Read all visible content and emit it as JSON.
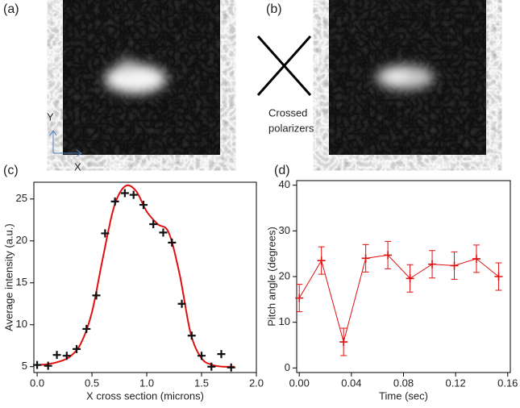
{
  "panel_labels": [
    "(a)",
    "(b)",
    "(c)",
    "(d)"
  ],
  "polarizer_label": [
    "Crossed",
    "polarizers"
  ],
  "axis_arrows": {
    "y": "Y",
    "x": "X"
  },
  "chart_data": [
    {
      "type": "scatter",
      "xlabel": "X cross section (microns)",
      "ylabel": "Average intensity (a.u.)",
      "xlim": [
        -0.03,
        2.0
      ],
      "ylim": [
        4.3,
        27
      ],
      "xticks": [
        {
          "value": 0,
          "label": "0.0"
        },
        {
          "value": 0.5,
          "label": "0.5"
        },
        {
          "value": 1,
          "label": "1.0"
        },
        {
          "value": 1.5,
          "label": "1.5"
        },
        {
          "value": 2,
          "label": "2.0"
        }
      ],
      "yticks": [
        5,
        10,
        15,
        20,
        25
      ],
      "series": [
        {
          "mode": "line",
          "color": "#e01010",
          "x": [
            0,
            0.1,
            0.2,
            0.3,
            0.4,
            0.5,
            0.6,
            0.7,
            0.8,
            0.9,
            1.0,
            1.1,
            1.2,
            1.3,
            1.4,
            1.5,
            1.6,
            1.7,
            1.8
          ],
          "values": [
            5.2,
            5.3,
            5.6,
            6.2,
            7.8,
            11.5,
            18,
            24,
            26.5,
            26,
            23.5,
            22,
            21,
            16,
            9,
            6,
            5.2,
            5,
            5
          ]
        },
        {
          "mode": "markers",
          "color": "#111",
          "x": [
            0,
            0.1,
            0.18,
            0.27,
            0.36,
            0.45,
            0.54,
            0.62,
            0.71,
            0.8,
            0.88,
            0.97,
            1.06,
            1.15,
            1.23,
            1.32,
            1.41,
            1.5,
            1.59,
            1.68,
            1.77
          ],
          "values": [
            5.2,
            5.1,
            6.4,
            6.3,
            7.1,
            9.5,
            13.5,
            20.9,
            24.7,
            25.7,
            25.5,
            24.3,
            22,
            21,
            19.8,
            12.5,
            8.7,
            6.3,
            5,
            6.5,
            4.9
          ]
        }
      ]
    },
    {
      "type": "line",
      "xlabel": "Time (sec)",
      "ylabel": "Pitch angle (degrees)",
      "xlim": [
        -0.002,
        0.162
      ],
      "ylim": [
        -1,
        41
      ],
      "xticks": [
        {
          "value": 0,
          "label": "0.00"
        },
        {
          "value": 0.04,
          "label": "0.04"
        },
        {
          "value": 0.08,
          "label": "0.08"
        },
        {
          "value": 0.12,
          "label": "0.12"
        },
        {
          "value": 0.16,
          "label": "0.16"
        }
      ],
      "yticks": [
        0,
        10,
        20,
        30,
        40
      ],
      "series": [
        {
          "mode": "line-markers",
          "color": "#e01010",
          "x": [
            0,
            0.017,
            0.034,
            0.051,
            0.068,
            0.085,
            0.102,
            0.119,
            0.136,
            0.153
          ],
          "values": [
            15.3,
            23.5,
            5.7,
            24,
            24.7,
            19.6,
            22.7,
            22.4,
            23.9,
            20
          ],
          "errors": [
            3,
            3,
            3,
            3,
            3,
            3,
            3,
            3,
            3,
            3
          ]
        }
      ]
    }
  ]
}
